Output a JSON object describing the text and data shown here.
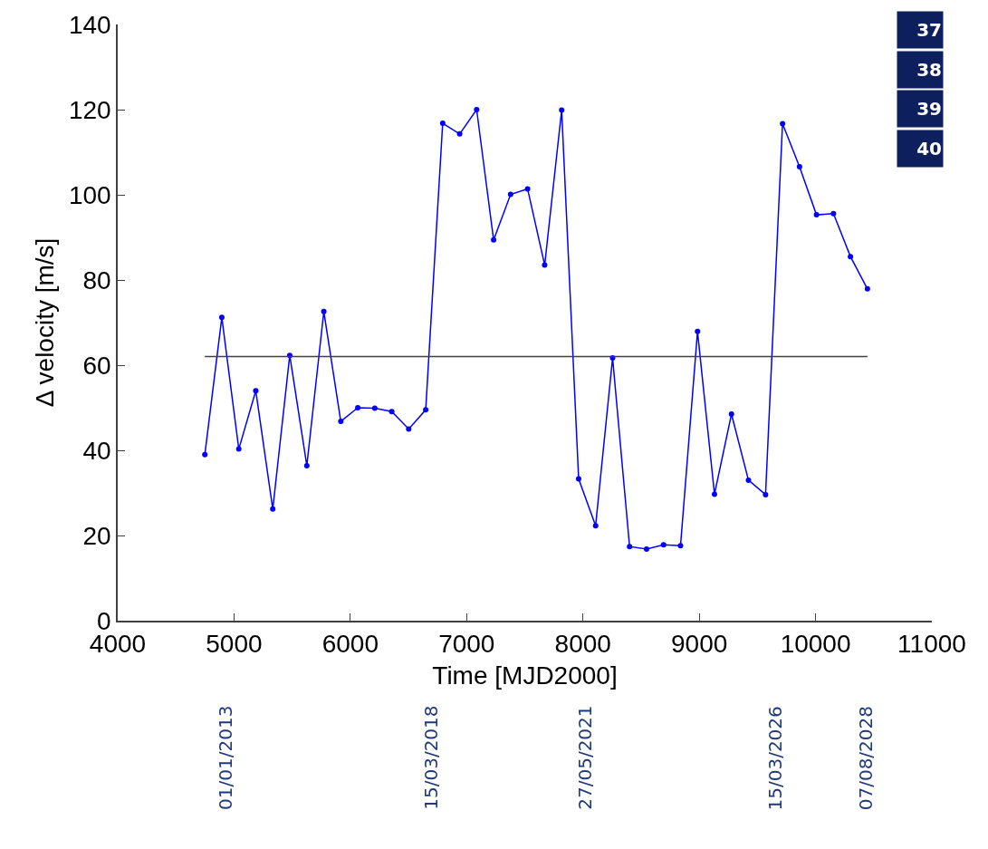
{
  "chart_data": {
    "type": "line",
    "xlabel": "Time [MJD2000]",
    "ylabel": "Δ velocity [m/s]",
    "xlim": [
      4000,
      11000
    ],
    "xticks": [
      4000,
      5000,
      6000,
      7000,
      8000,
      9000,
      10000,
      11000
    ],
    "ylim": [
      0,
      140
    ],
    "yticks": [
      0,
      20,
      40,
      60,
      80,
      100,
      120,
      140
    ],
    "marker": "circle",
    "line_style": "solid",
    "series": [
      {
        "color": "#0000ff",
        "x": [
          4749,
          4895,
          5041,
          5187,
          5333,
          5479,
          5626,
          5772,
          5918,
          6064,
          6210,
          6356,
          6502,
          6648,
          6794,
          6940,
          7086,
          7232,
          7378,
          7524,
          7671,
          7817,
          7963,
          8109,
          8255,
          8401,
          8547,
          8693,
          8839,
          8985,
          9131,
          9277,
          9423,
          9570,
          9716,
          9862,
          10008,
          10154,
          10300,
          10446
        ],
        "values": [
          39.0,
          71.2,
          40.3,
          54.0,
          26.2,
          62.3,
          36.4,
          72.6,
          46.8,
          50.0,
          49.9,
          49.1,
          45.0,
          49.5,
          116.8,
          114.3,
          120.0,
          89.4,
          100.1,
          101.4,
          83.5,
          119.9,
          33.3,
          22.3,
          61.7,
          17.4,
          16.8,
          17.8,
          17.6,
          67.9,
          29.7,
          48.5,
          33.0,
          29.6,
          116.7,
          106.6,
          95.3,
          95.6,
          85.5,
          77.9
        ]
      },
      {
        "color": "#404040",
        "marker": "none",
        "x": [
          4749,
          10446
        ],
        "values": [
          62,
          62
        ]
      }
    ],
    "annotations": [
      "01/01/2013",
      "15/03/2018",
      "27/05/2021",
      "15/03/2026",
      "07/08/2028",
      "37",
      "38",
      "39",
      "40"
    ]
  }
}
